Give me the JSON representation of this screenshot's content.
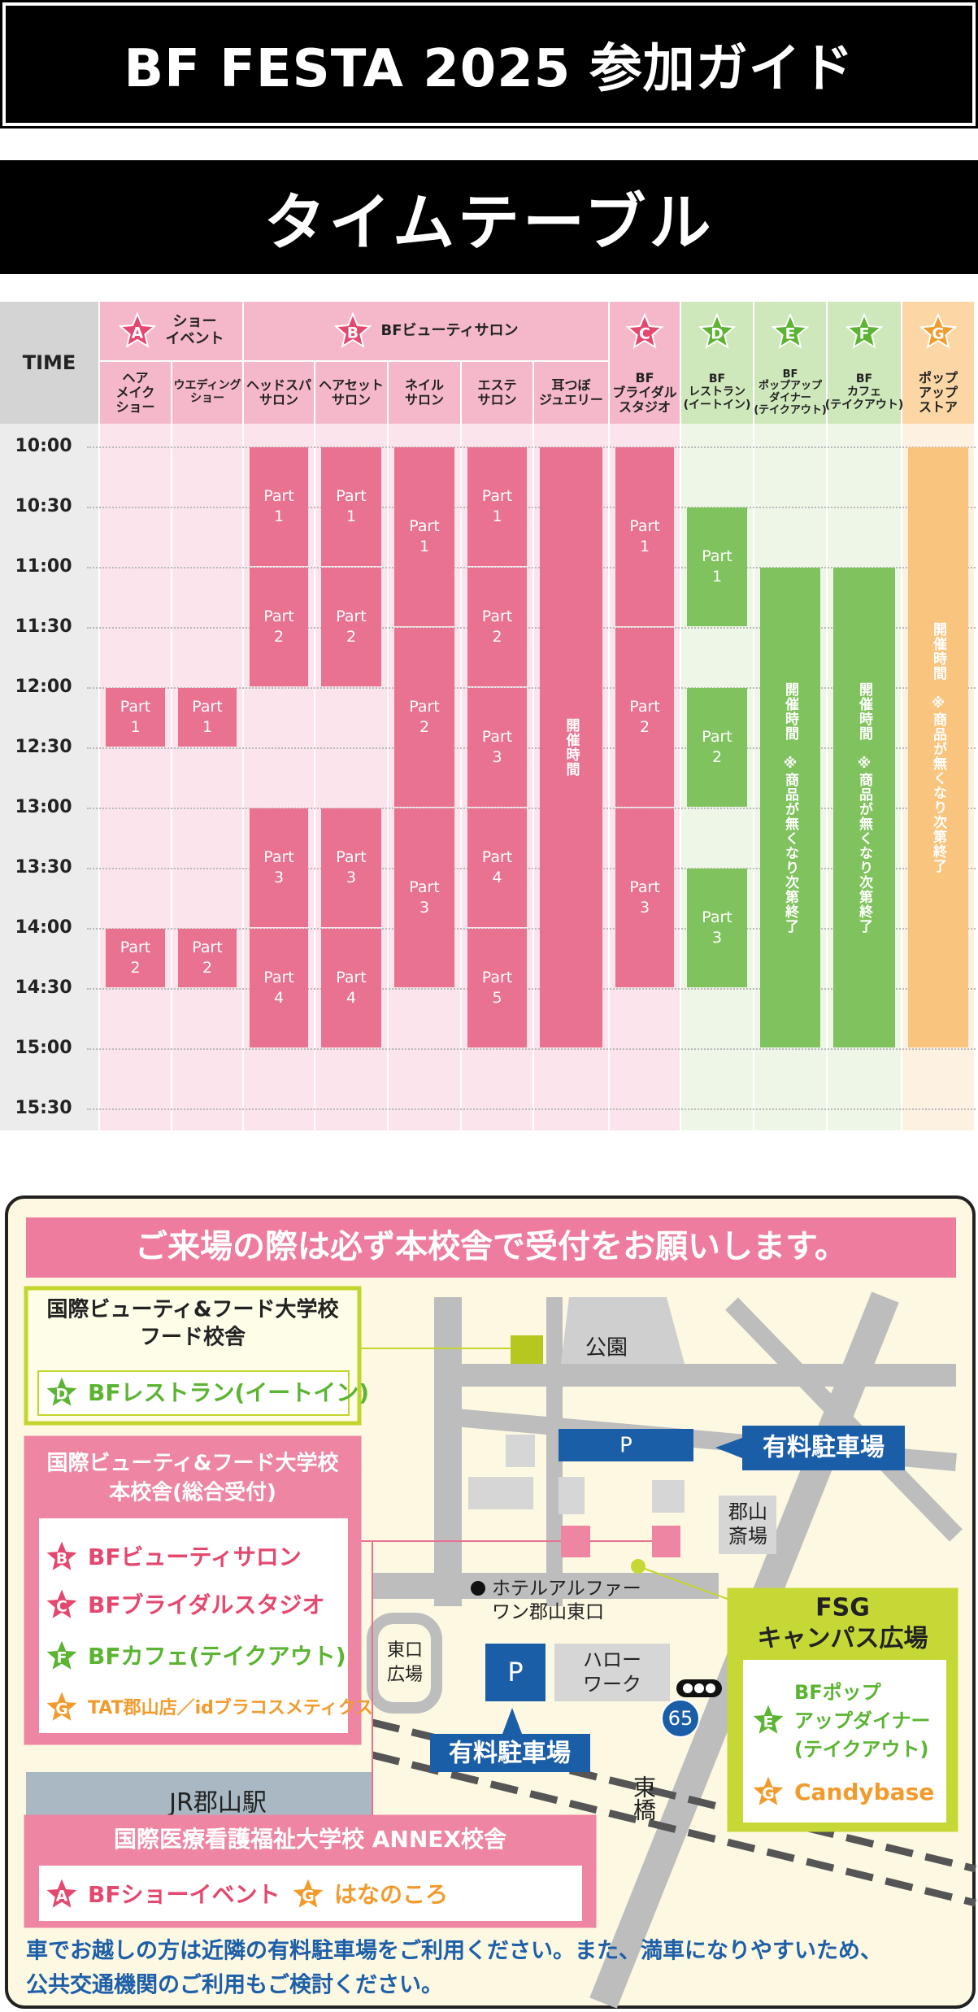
{
  "header": {
    "title": "BF FESTA 2025 参加ガイド"
  },
  "timetable": {
    "title": "タイムテーブル",
    "time_label": "TIME",
    "times": [
      "10:00",
      "10:30",
      "11:00",
      "11:30",
      "12:00",
      "12:30",
      "13:00",
      "13:30",
      "14:00",
      "14:30",
      "15:00",
      "15:30"
    ],
    "groups": [
      {
        "letter": "A",
        "name": [
          "ショー",
          "イベント"
        ],
        "colors": {
          "star": "#e5486f",
          "header": "#f5b8cb",
          "body": "#fbe4eb",
          "block": "#e8728f"
        },
        "columns": [
          {
            "name": [
              "ヘア",
              "メイク",
              "ショー"
            ],
            "blocks": [
              {
                "label": "Part 1",
                "start": "12:00",
                "end": "12:30"
              },
              {
                "label": "Part 2",
                "start": "14:00",
                "end": "14:30"
              }
            ]
          },
          {
            "name": [
              "ウエディング",
              "ショー"
            ],
            "blocks": [
              {
                "label": "Part 1",
                "start": "12:00",
                "end": "12:30"
              },
              {
                "label": "Part 2",
                "start": "14:00",
                "end": "14:30"
              }
            ]
          }
        ]
      },
      {
        "letter": "B",
        "name": [
          "BFビューティサロン"
        ],
        "colors": {
          "star": "#e5486f",
          "header": "#f5b8cb",
          "body": "#fbe4eb",
          "block": "#e8728f"
        },
        "columns": [
          {
            "name": [
              "ヘッドスパ",
              "サロン"
            ],
            "blocks": [
              {
                "label": "Part 1",
                "start": "10:00",
                "end": "11:00"
              },
              {
                "label": "Part 2",
                "start": "11:00",
                "end": "12:00"
              },
              {
                "label": "Part 3",
                "start": "13:00",
                "end": "14:00"
              },
              {
                "label": "Part 4",
                "start": "14:00",
                "end": "15:00"
              }
            ]
          },
          {
            "name": [
              "ヘアセット",
              "サロン"
            ],
            "blocks": [
              {
                "label": "Part 1",
                "start": "10:00",
                "end": "11:00"
              },
              {
                "label": "Part 2",
                "start": "11:00",
                "end": "12:00"
              },
              {
                "label": "Part 3",
                "start": "13:00",
                "end": "14:00"
              },
              {
                "label": "Part 4",
                "start": "14:00",
                "end": "15:00"
              }
            ]
          },
          {
            "name": [
              "ネイル",
              "サロン"
            ],
            "blocks": [
              {
                "label": "Part 1",
                "start": "10:00",
                "end": "11:30"
              },
              {
                "label": "Part 2",
                "start": "11:30",
                "end": "13:00"
              },
              {
                "label": "Part 3",
                "start": "13:00",
                "end": "14:30"
              }
            ]
          },
          {
            "name": [
              "エステ",
              "サロン"
            ],
            "blocks": [
              {
                "label": "Part 1",
                "start": "10:00",
                "end": "11:00"
              },
              {
                "label": "Part 2",
                "start": "11:00",
                "end": "12:00"
              },
              {
                "label": "Part 3",
                "start": "12:00",
                "end": "13:00"
              },
              {
                "label": "Part 4",
                "start": "13:00",
                "end": "14:00"
              },
              {
                "label": "Part 5",
                "start": "14:00",
                "end": "15:00"
              }
            ]
          },
          {
            "name": [
              "耳つぼ",
              "ジュエリー"
            ],
            "blocks": [
              {
                "label": "開催時間",
                "start": "10:00",
                "end": "15:00"
              }
            ]
          }
        ]
      },
      {
        "letter": "C",
        "colors": {
          "star": "#e5486f",
          "header": "#f5b8cb",
          "body": "#fbe4eb",
          "block": "#e8728f"
        },
        "columns": [
          {
            "name": [
              "BF",
              "ブライダル",
              "スタジオ"
            ],
            "blocks": [
              {
                "label": "Part 1",
                "start": "10:00",
                "end": "11:30"
              },
              {
                "label": "Part 2",
                "start": "11:30",
                "end": "13:00"
              },
              {
                "label": "Part 3",
                "start": "13:00",
                "end": "14:30"
              }
            ]
          }
        ]
      },
      {
        "letter": "D",
        "colors": {
          "star": "#5bb432",
          "header": "#cfe8bb",
          "body": "#eef6e8",
          "block": "#80c35e"
        },
        "columns": [
          {
            "name": [
              "BF",
              "レストラン",
              "(イートイン)"
            ],
            "blocks": [
              {
                "label": "Part 1",
                "start": "10:30",
                "end": "11:30"
              },
              {
                "label": "Part 2",
                "start": "12:00",
                "end": "13:00"
              },
              {
                "label": "Part 3",
                "start": "13:30",
                "end": "14:30"
              }
            ]
          }
        ]
      },
      {
        "letter": "E",
        "colors": {
          "star": "#5bb432",
          "header": "#cfe8bb",
          "body": "#eef6e8",
          "block": "#80c35e"
        },
        "columns": [
          {
            "name": [
              "BF",
              "ポップアップ",
              "ダイナー",
              "(テイクアウト)"
            ],
            "blocks": [
              {
                "label": "開催時間　※商品が無くなり次第終了",
                "start": "11:00",
                "end": "15:00"
              }
            ]
          }
        ]
      },
      {
        "letter": "F",
        "colors": {
          "star": "#5bb432",
          "header": "#cfe8bb",
          "body": "#eef6e8",
          "block": "#80c35e"
        },
        "columns": [
          {
            "name": [
              "BF",
              "カフェ",
              "(テイクアウト)"
            ],
            "blocks": [
              {
                "label": "開催時間　※商品が無くなり次第終了",
                "start": "11:00",
                "end": "15:00"
              }
            ]
          }
        ]
      },
      {
        "letter": "G",
        "colors": {
          "star": "#f29b2d",
          "header": "#fcd7a5",
          "body": "#fdf1e2",
          "block": "#f9c47e"
        },
        "columns": [
          {
            "name": [
              "ポップ",
              "アップ",
              "ストア"
            ],
            "blocks": [
              {
                "label": "開催時間　※商品が無くなり次第終了",
                "start": "10:00",
                "end": "15:00"
              }
            ]
          }
        ]
      }
    ]
  },
  "access": {
    "notice": "ご来場の際は必ず本校舎で受付をお願いします。",
    "venues": [
      {
        "title": [
          "国際ビューティ&フード大学校",
          "フード校舎"
        ],
        "items": [
          {
            "letter": "D",
            "name": [
              "BFレストラン(イートイン)"
            ]
          }
        ]
      },
      {
        "title": [
          "国際ビューティ&フード大学校",
          "本校舎(総合受付)"
        ],
        "items": [
          {
            "letter": "B",
            "name": [
              "BFビューティサロン"
            ]
          },
          {
            "letter": "C",
            "name": [
              "BFブライダルスタジオ"
            ]
          },
          {
            "letter": "F",
            "name": [
              "BFカフェ(テイクアウト)"
            ]
          },
          {
            "letter": "G",
            "name": [
              "TAT郡山店／idブラコスメティクス"
            ]
          }
        ]
      },
      {
        "title": [
          "FSG",
          "キャンパス広場"
        ],
        "items": [
          {
            "letter": "E",
            "name": [
              "BFポップ",
              "アップダイナー",
              "(テイクアウト)"
            ]
          },
          {
            "letter": "G",
            "name": [
              "Candybase"
            ]
          }
        ]
      },
      {
        "title": [
          "国際医療看護福祉大学校 ANNEX校舎"
        ],
        "items": [
          {
            "letter": "A",
            "name": [
              "BFショーイベント"
            ]
          },
          {
            "letter": "G",
            "name": [
              "はなのころ"
            ]
          }
        ]
      }
    ],
    "map": {
      "park": "公園",
      "parking_sign": [
        "P",
        "P"
      ],
      "parking_label": [
        "有料駐車場",
        "有料駐車場"
      ],
      "funeral_hall": [
        "郡山",
        "斎場"
      ],
      "hotel": [
        "ホテルアルファー",
        "ワン郡山東口"
      ],
      "plaza": [
        "東口",
        "広場"
      ],
      "hello_work": [
        "ハロー",
        "ワーク"
      ],
      "station": "JR郡山駅",
      "bridge": "東橋",
      "route": "65"
    },
    "footer": [
      "車でお越しの方は近隣の有料駐車場をご利用ください。また、満車になりやすいため、",
      "公共交通機関のご利用もご検討ください。"
    ]
  }
}
